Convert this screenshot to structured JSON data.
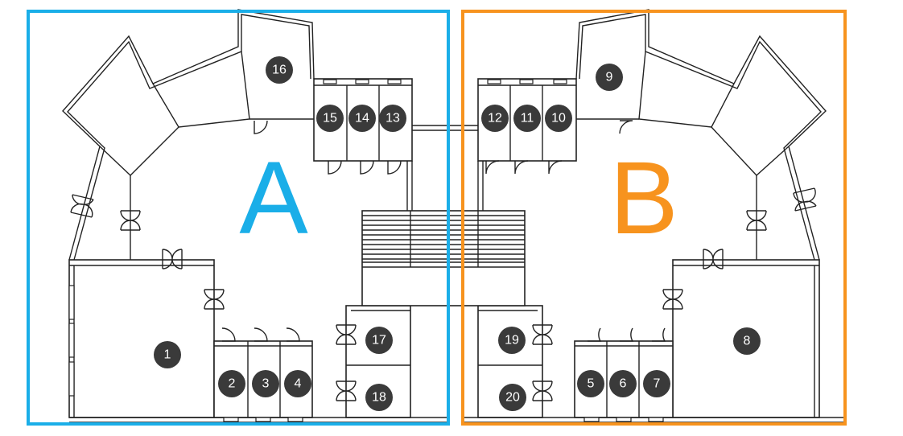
{
  "colors": {
    "zone_a": "#1aaee8",
    "zone_b": "#f7931e",
    "badge": "#3a3a3a",
    "wall": "#222222"
  },
  "zones": [
    {
      "id": "a",
      "label": "A"
    },
    {
      "id": "b",
      "label": "B"
    }
  ],
  "rooms": [
    "1",
    "2",
    "3",
    "4",
    "5",
    "6",
    "7",
    "8",
    "9",
    "10",
    "11",
    "12",
    "13",
    "14",
    "15",
    "16",
    "17",
    "18",
    "19",
    "20"
  ],
  "icons": {
    "door": "door-swing-icon",
    "double_door": "double-door-icon",
    "window": "window-icon"
  }
}
